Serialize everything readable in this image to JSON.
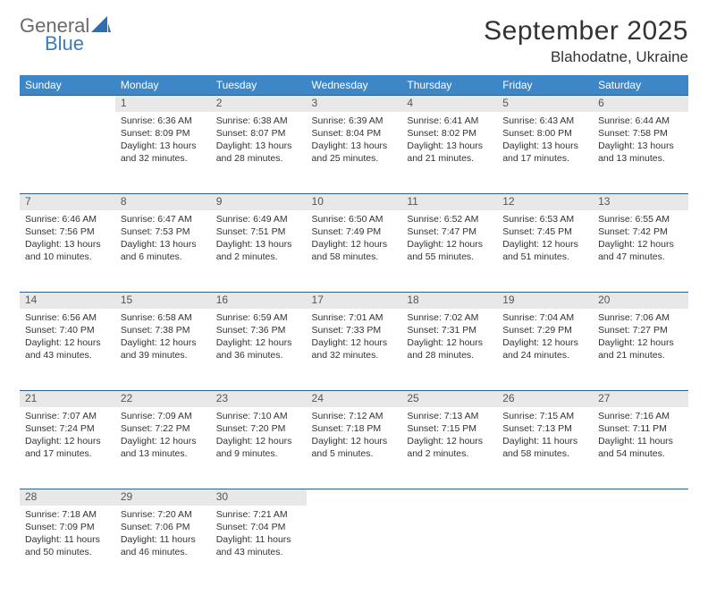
{
  "logo": {
    "word1": "General",
    "word2": "Blue",
    "gray_color": "#6b6b6b",
    "blue_color": "#3b7bbf",
    "shape_color": "#2f6fb0"
  },
  "header": {
    "title": "September 2025",
    "location": "Blahodatne, Ukraine"
  },
  "colors": {
    "header_bg": "#3d87c7",
    "header_text": "#ffffff",
    "daynum_bg": "#e8e8e8",
    "rule": "#2f5f8a",
    "body_text": "#333333"
  },
  "day_headers": [
    "Sunday",
    "Monday",
    "Tuesday",
    "Wednesday",
    "Thursday",
    "Friday",
    "Saturday"
  ],
  "weeks": [
    {
      "nums": [
        "",
        "1",
        "2",
        "3",
        "4",
        "5",
        "6"
      ],
      "cells": [
        null,
        {
          "sunrise": "Sunrise: 6:36 AM",
          "sunset": "Sunset: 8:09 PM",
          "day1": "Daylight: 13 hours",
          "day2": "and 32 minutes."
        },
        {
          "sunrise": "Sunrise: 6:38 AM",
          "sunset": "Sunset: 8:07 PM",
          "day1": "Daylight: 13 hours",
          "day2": "and 28 minutes."
        },
        {
          "sunrise": "Sunrise: 6:39 AM",
          "sunset": "Sunset: 8:04 PM",
          "day1": "Daylight: 13 hours",
          "day2": "and 25 minutes."
        },
        {
          "sunrise": "Sunrise: 6:41 AM",
          "sunset": "Sunset: 8:02 PM",
          "day1": "Daylight: 13 hours",
          "day2": "and 21 minutes."
        },
        {
          "sunrise": "Sunrise: 6:43 AM",
          "sunset": "Sunset: 8:00 PM",
          "day1": "Daylight: 13 hours",
          "day2": "and 17 minutes."
        },
        {
          "sunrise": "Sunrise: 6:44 AM",
          "sunset": "Sunset: 7:58 PM",
          "day1": "Daylight: 13 hours",
          "day2": "and 13 minutes."
        }
      ]
    },
    {
      "nums": [
        "7",
        "8",
        "9",
        "10",
        "11",
        "12",
        "13"
      ],
      "cells": [
        {
          "sunrise": "Sunrise: 6:46 AM",
          "sunset": "Sunset: 7:56 PM",
          "day1": "Daylight: 13 hours",
          "day2": "and 10 minutes."
        },
        {
          "sunrise": "Sunrise: 6:47 AM",
          "sunset": "Sunset: 7:53 PM",
          "day1": "Daylight: 13 hours",
          "day2": "and 6 minutes."
        },
        {
          "sunrise": "Sunrise: 6:49 AM",
          "sunset": "Sunset: 7:51 PM",
          "day1": "Daylight: 13 hours",
          "day2": "and 2 minutes."
        },
        {
          "sunrise": "Sunrise: 6:50 AM",
          "sunset": "Sunset: 7:49 PM",
          "day1": "Daylight: 12 hours",
          "day2": "and 58 minutes."
        },
        {
          "sunrise": "Sunrise: 6:52 AM",
          "sunset": "Sunset: 7:47 PM",
          "day1": "Daylight: 12 hours",
          "day2": "and 55 minutes."
        },
        {
          "sunrise": "Sunrise: 6:53 AM",
          "sunset": "Sunset: 7:45 PM",
          "day1": "Daylight: 12 hours",
          "day2": "and 51 minutes."
        },
        {
          "sunrise": "Sunrise: 6:55 AM",
          "sunset": "Sunset: 7:42 PM",
          "day1": "Daylight: 12 hours",
          "day2": "and 47 minutes."
        }
      ]
    },
    {
      "nums": [
        "14",
        "15",
        "16",
        "17",
        "18",
        "19",
        "20"
      ],
      "cells": [
        {
          "sunrise": "Sunrise: 6:56 AM",
          "sunset": "Sunset: 7:40 PM",
          "day1": "Daylight: 12 hours",
          "day2": "and 43 minutes."
        },
        {
          "sunrise": "Sunrise: 6:58 AM",
          "sunset": "Sunset: 7:38 PM",
          "day1": "Daylight: 12 hours",
          "day2": "and 39 minutes."
        },
        {
          "sunrise": "Sunrise: 6:59 AM",
          "sunset": "Sunset: 7:36 PM",
          "day1": "Daylight: 12 hours",
          "day2": "and 36 minutes."
        },
        {
          "sunrise": "Sunrise: 7:01 AM",
          "sunset": "Sunset: 7:33 PM",
          "day1": "Daylight: 12 hours",
          "day2": "and 32 minutes."
        },
        {
          "sunrise": "Sunrise: 7:02 AM",
          "sunset": "Sunset: 7:31 PM",
          "day1": "Daylight: 12 hours",
          "day2": "and 28 minutes."
        },
        {
          "sunrise": "Sunrise: 7:04 AM",
          "sunset": "Sunset: 7:29 PM",
          "day1": "Daylight: 12 hours",
          "day2": "and 24 minutes."
        },
        {
          "sunrise": "Sunrise: 7:06 AM",
          "sunset": "Sunset: 7:27 PM",
          "day1": "Daylight: 12 hours",
          "day2": "and 21 minutes."
        }
      ]
    },
    {
      "nums": [
        "21",
        "22",
        "23",
        "24",
        "25",
        "26",
        "27"
      ],
      "cells": [
        {
          "sunrise": "Sunrise: 7:07 AM",
          "sunset": "Sunset: 7:24 PM",
          "day1": "Daylight: 12 hours",
          "day2": "and 17 minutes."
        },
        {
          "sunrise": "Sunrise: 7:09 AM",
          "sunset": "Sunset: 7:22 PM",
          "day1": "Daylight: 12 hours",
          "day2": "and 13 minutes."
        },
        {
          "sunrise": "Sunrise: 7:10 AM",
          "sunset": "Sunset: 7:20 PM",
          "day1": "Daylight: 12 hours",
          "day2": "and 9 minutes."
        },
        {
          "sunrise": "Sunrise: 7:12 AM",
          "sunset": "Sunset: 7:18 PM",
          "day1": "Daylight: 12 hours",
          "day2": "and 5 minutes."
        },
        {
          "sunrise": "Sunrise: 7:13 AM",
          "sunset": "Sunset: 7:15 PM",
          "day1": "Daylight: 12 hours",
          "day2": "and 2 minutes."
        },
        {
          "sunrise": "Sunrise: 7:15 AM",
          "sunset": "Sunset: 7:13 PM",
          "day1": "Daylight: 11 hours",
          "day2": "and 58 minutes."
        },
        {
          "sunrise": "Sunrise: 7:16 AM",
          "sunset": "Sunset: 7:11 PM",
          "day1": "Daylight: 11 hours",
          "day2": "and 54 minutes."
        }
      ]
    },
    {
      "nums": [
        "28",
        "29",
        "30",
        "",
        "",
        "",
        ""
      ],
      "cells": [
        {
          "sunrise": "Sunrise: 7:18 AM",
          "sunset": "Sunset: 7:09 PM",
          "day1": "Daylight: 11 hours",
          "day2": "and 50 minutes."
        },
        {
          "sunrise": "Sunrise: 7:20 AM",
          "sunset": "Sunset: 7:06 PM",
          "day1": "Daylight: 11 hours",
          "day2": "and 46 minutes."
        },
        {
          "sunrise": "Sunrise: 7:21 AM",
          "sunset": "Sunset: 7:04 PM",
          "day1": "Daylight: 11 hours",
          "day2": "and 43 minutes."
        },
        null,
        null,
        null,
        null
      ]
    }
  ]
}
